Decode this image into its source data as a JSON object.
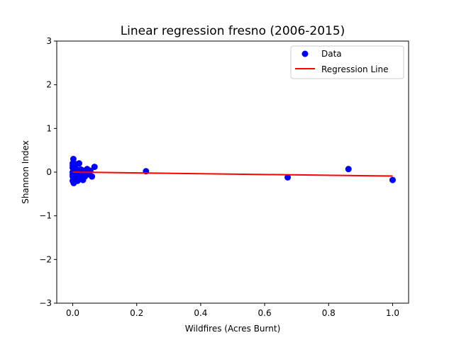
{
  "chart_data": {
    "type": "scatter",
    "title": "Linear regression fresno (2006-2015)",
    "xlabel": "Wildfires (Acres Burnt)",
    "ylabel": "Shannon Index",
    "xlim": [
      -0.05,
      1.05
    ],
    "ylim": [
      -3,
      3
    ],
    "x_ticks": [
      0.0,
      0.2,
      0.4,
      0.6,
      0.8,
      1.0
    ],
    "x_tick_labels": [
      "0.0",
      "0.2",
      "0.4",
      "0.6",
      "0.8",
      "1.0"
    ],
    "y_ticks": [
      -3,
      -2,
      -1,
      0,
      1,
      2,
      3
    ],
    "y_tick_labels": [
      "−3",
      "−2",
      "−1",
      "0",
      "1",
      "2",
      "3"
    ],
    "grid": false,
    "legend_position": "top-right",
    "colors": {
      "data": "#0000ff",
      "regression": "#ff0000"
    },
    "series": [
      {
        "name": "Data",
        "kind": "scatter",
        "points": [
          [
            0.0,
            0.2
          ],
          [
            0.0,
            0.1
          ],
          [
            0.0,
            0.0
          ],
          [
            0.0,
            -0.1
          ],
          [
            0.0,
            -0.2
          ],
          [
            0.0,
            0.15
          ],
          [
            0.0,
            -0.05
          ],
          [
            0.002,
            0.3
          ],
          [
            0.003,
            -0.25
          ],
          [
            0.004,
            0.05
          ],
          [
            0.005,
            -0.15
          ],
          [
            0.006,
            0.12
          ],
          [
            0.008,
            0.08
          ],
          [
            0.01,
            -0.08
          ],
          [
            0.012,
            0.18
          ],
          [
            0.015,
            -0.2
          ],
          [
            0.018,
            0.02
          ],
          [
            0.02,
            0.2
          ],
          [
            0.022,
            -0.12
          ],
          [
            0.025,
            0.06
          ],
          [
            0.028,
            -0.03
          ],
          [
            0.03,
            0.04
          ],
          [
            0.032,
            -0.18
          ],
          [
            0.035,
            0.0
          ],
          [
            0.038,
            -0.1
          ],
          [
            0.04,
            0.02
          ],
          [
            0.045,
            0.07
          ],
          [
            0.05,
            -0.05
          ],
          [
            0.055,
            0.03
          ],
          [
            0.06,
            -0.1
          ],
          [
            0.068,
            0.12
          ],
          [
            0.229,
            0.02
          ],
          [
            0.672,
            -0.12
          ],
          [
            0.862,
            0.07
          ],
          [
            1.0,
            -0.18
          ]
        ]
      },
      {
        "name": "Regression Line",
        "kind": "line",
        "points": [
          [
            0.0,
            0.0
          ],
          [
            1.0,
            -0.09
          ]
        ]
      }
    ]
  }
}
